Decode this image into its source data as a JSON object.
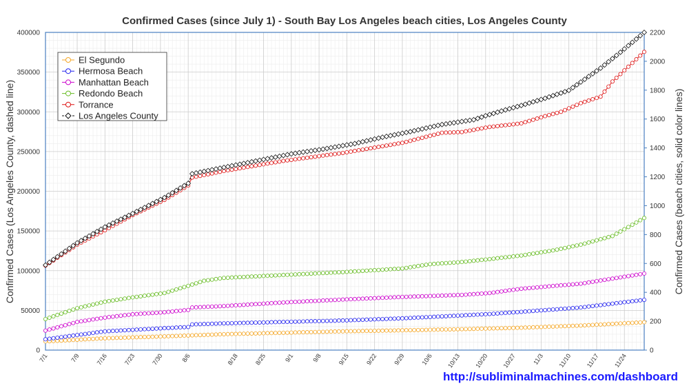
{
  "chart_data": {
    "type": "line",
    "title": "Confirmed Cases (since July 1) - South Bay Los Angeles beach cities, Los Angeles County",
    "ylabel_left": "Confirmed Cases (Los Angeles County, dashed line)",
    "ylabel_right": "Confirmed Cases (beach cities, solid color lines)",
    "ylim_left": [
      0,
      400000
    ],
    "ylim_right": [
      0,
      2200
    ],
    "yticks_left": [
      "0",
      "50000",
      "100000",
      "150000",
      "200000",
      "250000",
      "300000",
      "350000",
      "400000"
    ],
    "yticks_right": [
      "0",
      "200",
      "400",
      "600",
      "800",
      "1000",
      "1200",
      "1400",
      "1600",
      "1800",
      "2000",
      "2200"
    ],
    "x_dates": [
      "7/1",
      "7/9",
      "7/16",
      "7/23",
      "7/30",
      "8/6",
      "8/18",
      "8/25",
      "9/1",
      "9/8",
      "9/15",
      "9/22",
      "9/29",
      "10/6",
      "10/13",
      "10/20",
      "10/27",
      "11/3",
      "11/10",
      "11/17",
      "11/24"
    ],
    "x_day_index": [
      0,
      8,
      15,
      22,
      29,
      36,
      48,
      55,
      62,
      69,
      76,
      83,
      90,
      97,
      104,
      111,
      118,
      125,
      132,
      139,
      146
    ],
    "x_range_days": [
      0,
      151
    ],
    "grid": true,
    "legend_position": "top-left",
    "series": [
      {
        "name": "El Segundo",
        "axis": "right",
        "color": "#f5a623",
        "days": [
          0,
          15,
          30,
          45,
          60,
          75,
          90,
          105,
          120,
          135,
          151
        ],
        "values": [
          60,
          82,
          95,
          110,
          120,
          130,
          137,
          145,
          155,
          170,
          193
        ]
      },
      {
        "name": "Hermosa Beach",
        "axis": "right",
        "color": "#2222ee",
        "days": [
          0,
          15,
          30,
          36,
          37,
          45,
          60,
          75,
          90,
          105,
          112,
          120,
          135,
          151
        ],
        "values": [
          75,
          130,
          152,
          160,
          178,
          185,
          195,
          205,
          220,
          240,
          250,
          265,
          295,
          348
        ]
      },
      {
        "name": "Manhattan Beach",
        "axis": "right",
        "color": "#cc00cc",
        "days": [
          0,
          8,
          15,
          22,
          30,
          36,
          37,
          45,
          60,
          75,
          90,
          105,
          112,
          120,
          135,
          151
        ],
        "values": [
          135,
          195,
          225,
          248,
          262,
          278,
          295,
          305,
          330,
          350,
          368,
          382,
          395,
          425,
          460,
          530
        ]
      },
      {
        "name": "Redondo Beach",
        "axis": "right",
        "color": "#66bb22",
        "days": [
          0,
          8,
          15,
          22,
          30,
          36,
          40,
          45,
          60,
          75,
          90,
          97,
          105,
          112,
          120,
          128,
          135,
          143,
          151
        ],
        "values": [
          215,
          290,
          335,
          365,
          395,
          445,
          480,
          500,
          520,
          540,
          565,
          595,
          610,
          630,
          655,
          690,
          730,
          790,
          915
        ]
      },
      {
        "name": "Torrance",
        "axis": "right",
        "color": "#dd1111",
        "days": [
          0,
          8,
          15,
          22,
          30,
          36,
          37,
          45,
          60,
          75,
          90,
          100,
          105,
          112,
          120,
          126,
          130,
          135,
          140,
          143,
          151
        ],
        "values": [
          585,
          730,
          830,
          935,
          1040,
          1140,
          1195,
          1240,
          1310,
          1365,
          1435,
          1505,
          1510,
          1545,
          1570,
          1620,
          1650,
          1710,
          1755,
          1860,
          2065
        ]
      },
      {
        "name": "Los Angeles County",
        "axis": "left",
        "color": "#111111",
        "days": [
          0,
          8,
          15,
          22,
          30,
          36,
          37,
          45,
          55,
          62,
          70,
          78,
          85,
          92,
          100,
          108,
          111,
          115,
          120,
          126,
          132,
          140,
          145,
          151
        ],
        "values": [
          107000,
          135000,
          155000,
          172000,
          192000,
          210000,
          222000,
          230000,
          240000,
          247000,
          253000,
          260000,
          268000,
          275000,
          284000,
          290000,
          295000,
          301000,
          308000,
          317000,
          327000,
          355000,
          375000,
          400000
        ]
      }
    ]
  },
  "footer": {
    "url": "http://subliminalmachines.com/dashboard"
  }
}
